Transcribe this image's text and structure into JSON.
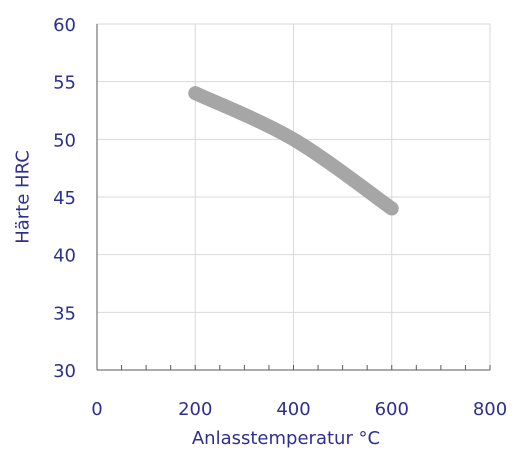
{
  "chart_data": {
    "type": "line",
    "x": [
      200,
      400,
      600
    ],
    "series": [
      {
        "values": [
          54,
          50,
          44
        ]
      }
    ],
    "xlabel": "Anlasstemperatur °C",
    "ylabel": "Härte HRC",
    "xlim": [
      0,
      800
    ],
    "ylim": [
      30,
      60
    ],
    "x_ticks": [
      "0",
      "200",
      "400",
      "600",
      "800"
    ],
    "y_ticks": [
      "60",
      "55",
      "50",
      "45",
      "40",
      "35",
      "30"
    ],
    "grid": true,
    "colors": {
      "axis_text": "#2f2f8f",
      "grid": "#d9d9d9",
      "axis": "#595959",
      "series": "#a6a6a6"
    }
  }
}
